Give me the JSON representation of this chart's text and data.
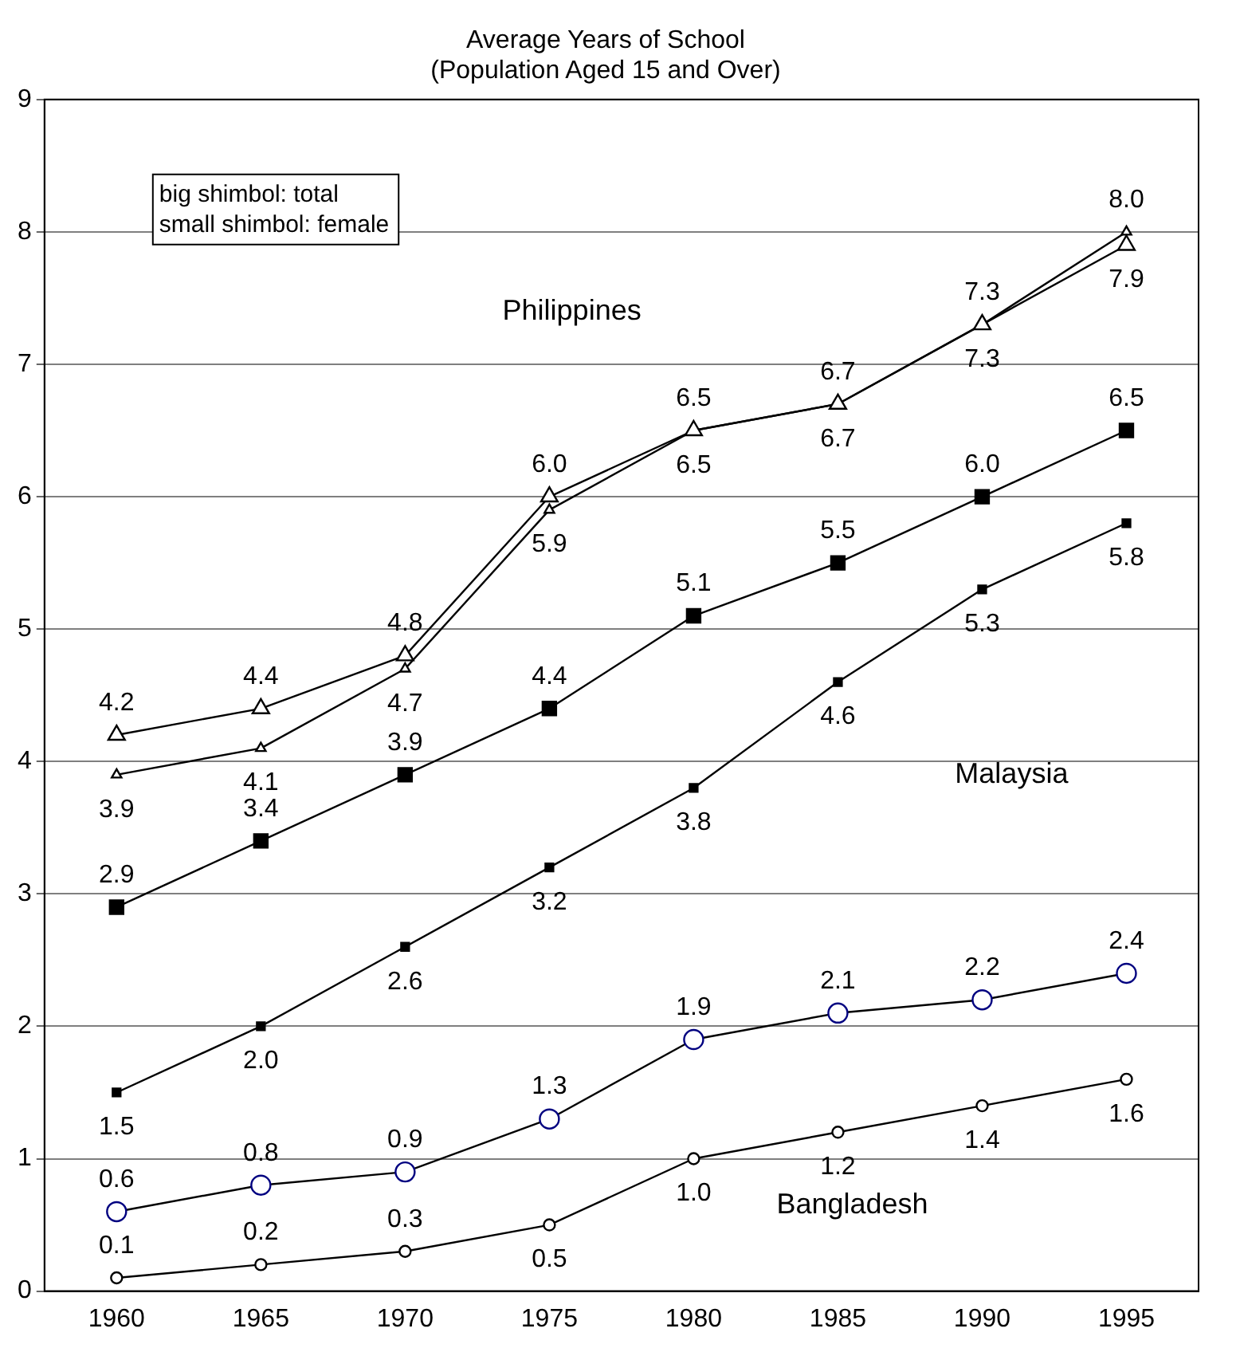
{
  "chart_data": {
    "type": "line",
    "title": "Average Years of School",
    "subtitle": "(Population Aged 15 and Over)",
    "x": [
      1960,
      1965,
      1970,
      1975,
      1980,
      1985,
      1990,
      1995
    ],
    "xlim": [
      1957.5,
      1997.5
    ],
    "xticks": [
      1960,
      1965,
      1970,
      1975,
      1980,
      1985,
      1990,
      1995
    ],
    "ylim": [
      0,
      9
    ],
    "yticks": [
      0,
      1,
      2,
      3,
      4,
      5,
      6,
      7,
      8,
      9
    ],
    "grid": "y",
    "legend": false,
    "series": [
      {
        "color": "#000000",
        "marker": "triangle",
        "values": [
          4.2,
          4.4,
          4.8,
          6.0,
          6.5,
          6.7,
          7.3,
          7.9
        ],
        "value_labels": [
          "4.2",
          "4.4",
          "4.8",
          "6.0",
          "6.5",
          "6.7",
          "7.3",
          "7.9"
        ]
      },
      {
        "color": "#000000",
        "marker": "triangle",
        "values": [
          3.9,
          4.1,
          4.7,
          5.9,
          6.5,
          6.7,
          7.3,
          8.0
        ],
        "value_labels": [
          "3.9",
          "4.1",
          "4.7",
          "5.9",
          "6.5",
          "6.7",
          "7.3",
          "8.0"
        ]
      },
      {
        "color": "#000000",
        "marker": "square",
        "values": [
          2.9,
          3.4,
          3.9,
          4.4,
          5.1,
          5.5,
          6.0,
          6.5
        ],
        "value_labels": [
          "2.9",
          "3.4",
          "3.9",
          "4.4",
          "5.1",
          "5.5",
          "6.0",
          "6.5"
        ]
      },
      {
        "color": "#000000",
        "marker": "square",
        "values": [
          1.5,
          2.0,
          2.6,
          3.2,
          3.8,
          4.6,
          5.3,
          5.8
        ],
        "value_labels": [
          "1.5",
          "2.0",
          "2.6",
          "3.2",
          "3.8",
          "4.6",
          "5.3",
          "5.8"
        ]
      },
      {
        "color": "#000080",
        "marker": "circle",
        "values": [
          0.6,
          0.8,
          0.9,
          1.3,
          1.9,
          2.1,
          2.2,
          2.4
        ],
        "value_labels": [
          "0.6",
          "0.8",
          "0.9",
          "1.3",
          "1.9",
          "2.1",
          "2.2",
          "2.4"
        ]
      },
      {
        "color": "#000000",
        "marker": "circle",
        "values": [
          0.1,
          0.2,
          0.3,
          0.5,
          1.0,
          1.2,
          1.4,
          1.6
        ],
        "value_labels": [
          "0.1",
          "0.2",
          "0.3",
          "0.5",
          "1.0",
          "1.2",
          "1.4",
          "1.6"
        ]
      }
    ],
    "annotations": [
      "big shimbol: total",
      "small shimbol: female",
      "Philippines",
      "Malaysia",
      "Bangladesh"
    ]
  }
}
